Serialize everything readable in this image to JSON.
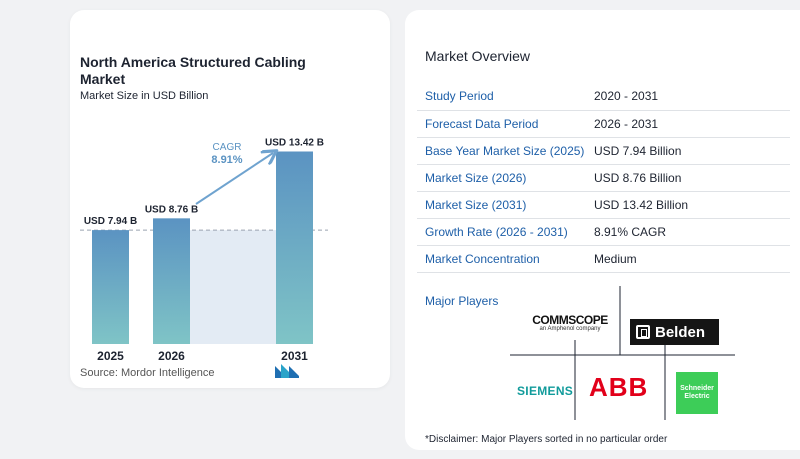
{
  "chart_data": {
    "type": "bar",
    "title": "North America Structured Cabling Market",
    "subtitle": "Market Size in USD Billion",
    "categories": [
      "2025",
      "2026",
      "2031"
    ],
    "values": [
      7.94,
      8.76,
      13.42
    ],
    "value_labels": [
      "USD 7.94 B",
      "USD 8.76 B",
      "USD 13.42 B"
    ],
    "cagr_label": "CAGR",
    "cagr_value": "8.91%",
    "ylim": [
      0,
      14.5
    ],
    "colors": {
      "bar_top": "#5b93c2",
      "bar_bottom": "#7fc4c6",
      "band": "#e3ebf4",
      "arrow": "#6fa3cf",
      "text": "#1d2330",
      "cagr": "#5b93c2"
    }
  },
  "source": "Source:  Mordor Intelligence",
  "overview": {
    "title": "Market Overview",
    "rows": [
      {
        "label": "Study Period",
        "value": "2020 - 2031"
      },
      {
        "label": "Forecast Data Period",
        "value": "2026 - 2031"
      },
      {
        "label": "Base Year Market Size (2025)",
        "value": "USD 7.94 Billion"
      },
      {
        "label": "Market Size (2026)",
        "value": "USD 8.76 Billion"
      },
      {
        "label": "Market Size (2031)",
        "value": "USD 13.42 Billion"
      },
      {
        "label": "Growth Rate (2026 - 2031)",
        "value": "8.91% CAGR"
      },
      {
        "label": "Market Concentration",
        "value": "Medium"
      }
    ]
  },
  "players": {
    "title": "Major Players",
    "commscope_main": "COMMSCOPE",
    "commscope_sub": "an Amphenol company",
    "belden": "Belden",
    "siemens": "SIEMENS",
    "abb": "ABB",
    "schneider": "Schneider Electric"
  },
  "disclaimer": "*Disclaimer: Major Players sorted in no particular order"
}
